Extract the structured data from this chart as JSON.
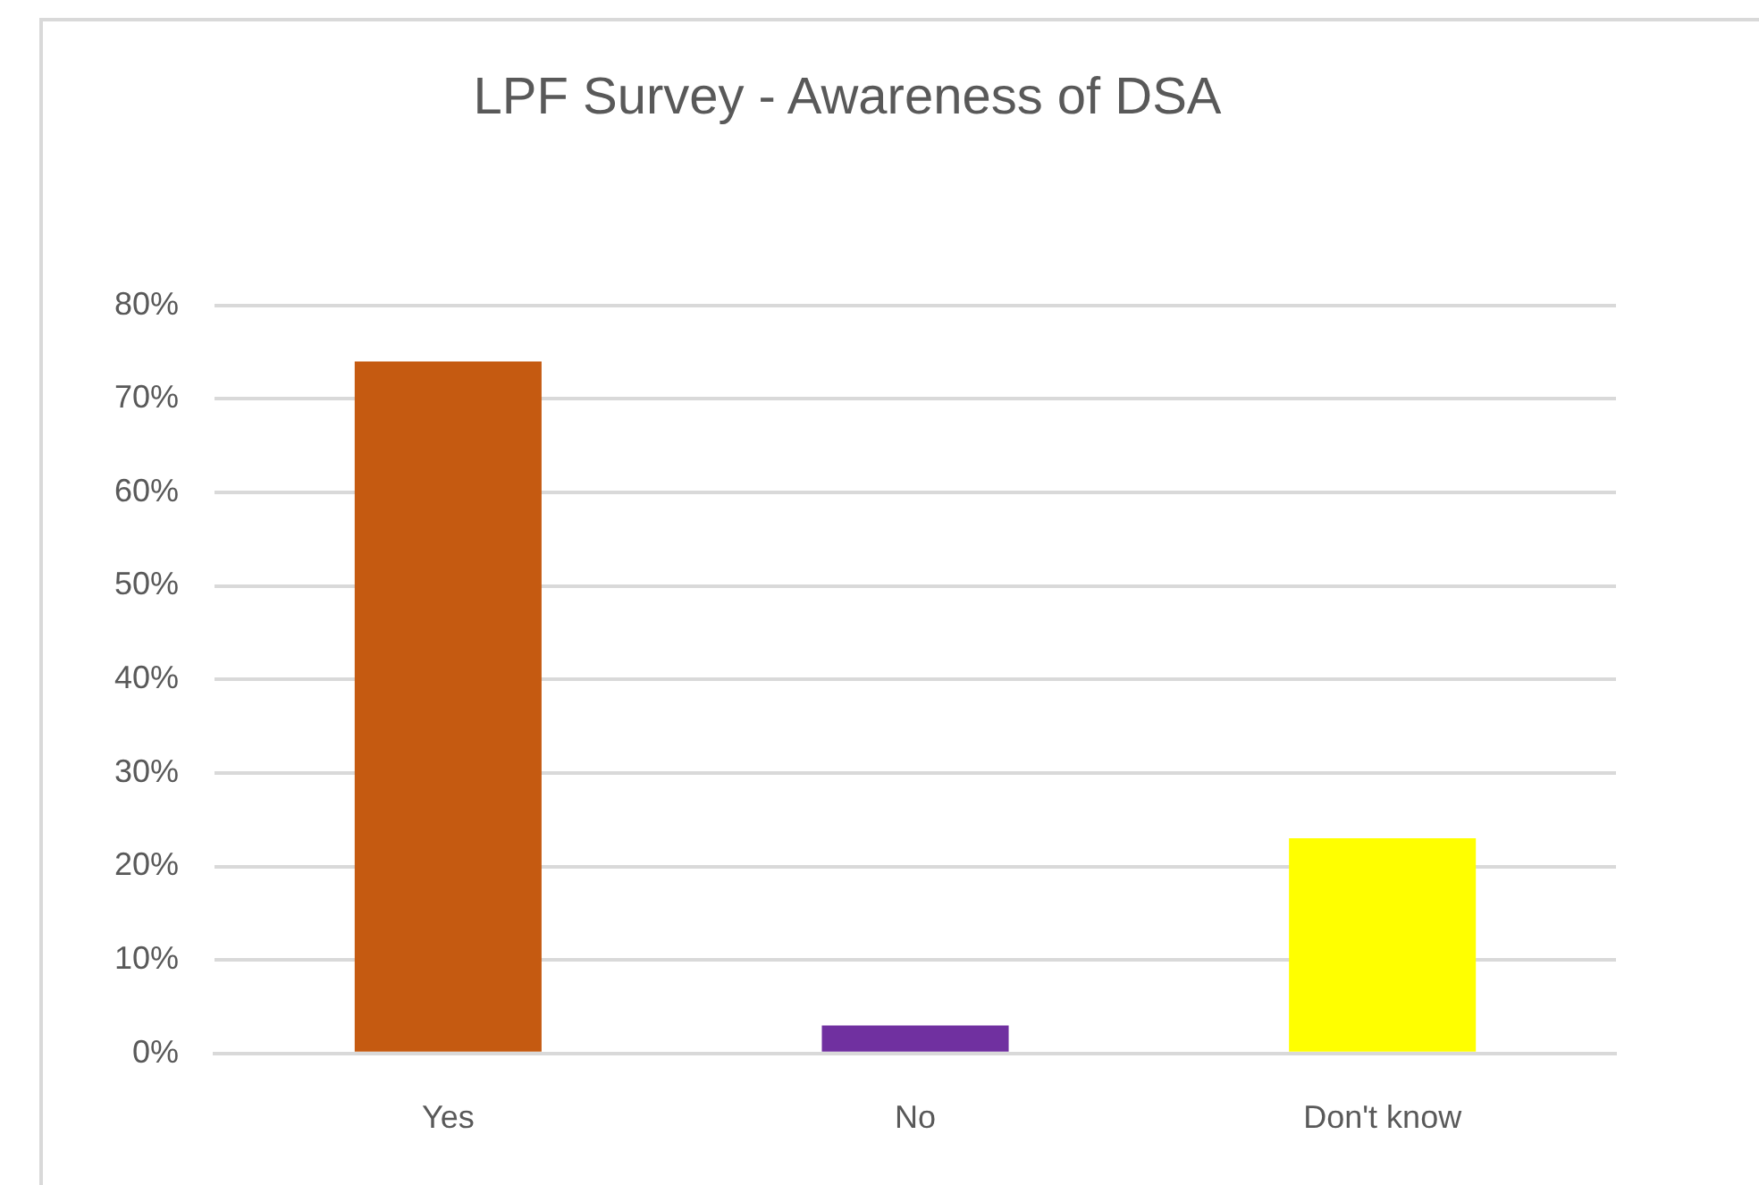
{
  "chart_data": {
    "type": "bar",
    "title": "LPF Survey - Awareness of DSA",
    "categories": [
      "Yes",
      "No",
      "Don't know"
    ],
    "values": [
      74,
      3,
      23
    ],
    "colors": [
      "#c55a11",
      "#7030a0",
      "#ffff00"
    ],
    "ylim": [
      0,
      80
    ],
    "yticks": [
      {
        "value": 0,
        "label": "0%"
      },
      {
        "value": 10,
        "label": "10%"
      },
      {
        "value": 20,
        "label": "20%"
      },
      {
        "value": 30,
        "label": "30%"
      },
      {
        "value": 40,
        "label": "40%"
      },
      {
        "value": 50,
        "label": "50%"
      },
      {
        "value": 60,
        "label": "60%"
      },
      {
        "value": 70,
        "label": "70%"
      },
      {
        "value": 80,
        "label": "80%"
      }
    ],
    "grid": "y"
  }
}
